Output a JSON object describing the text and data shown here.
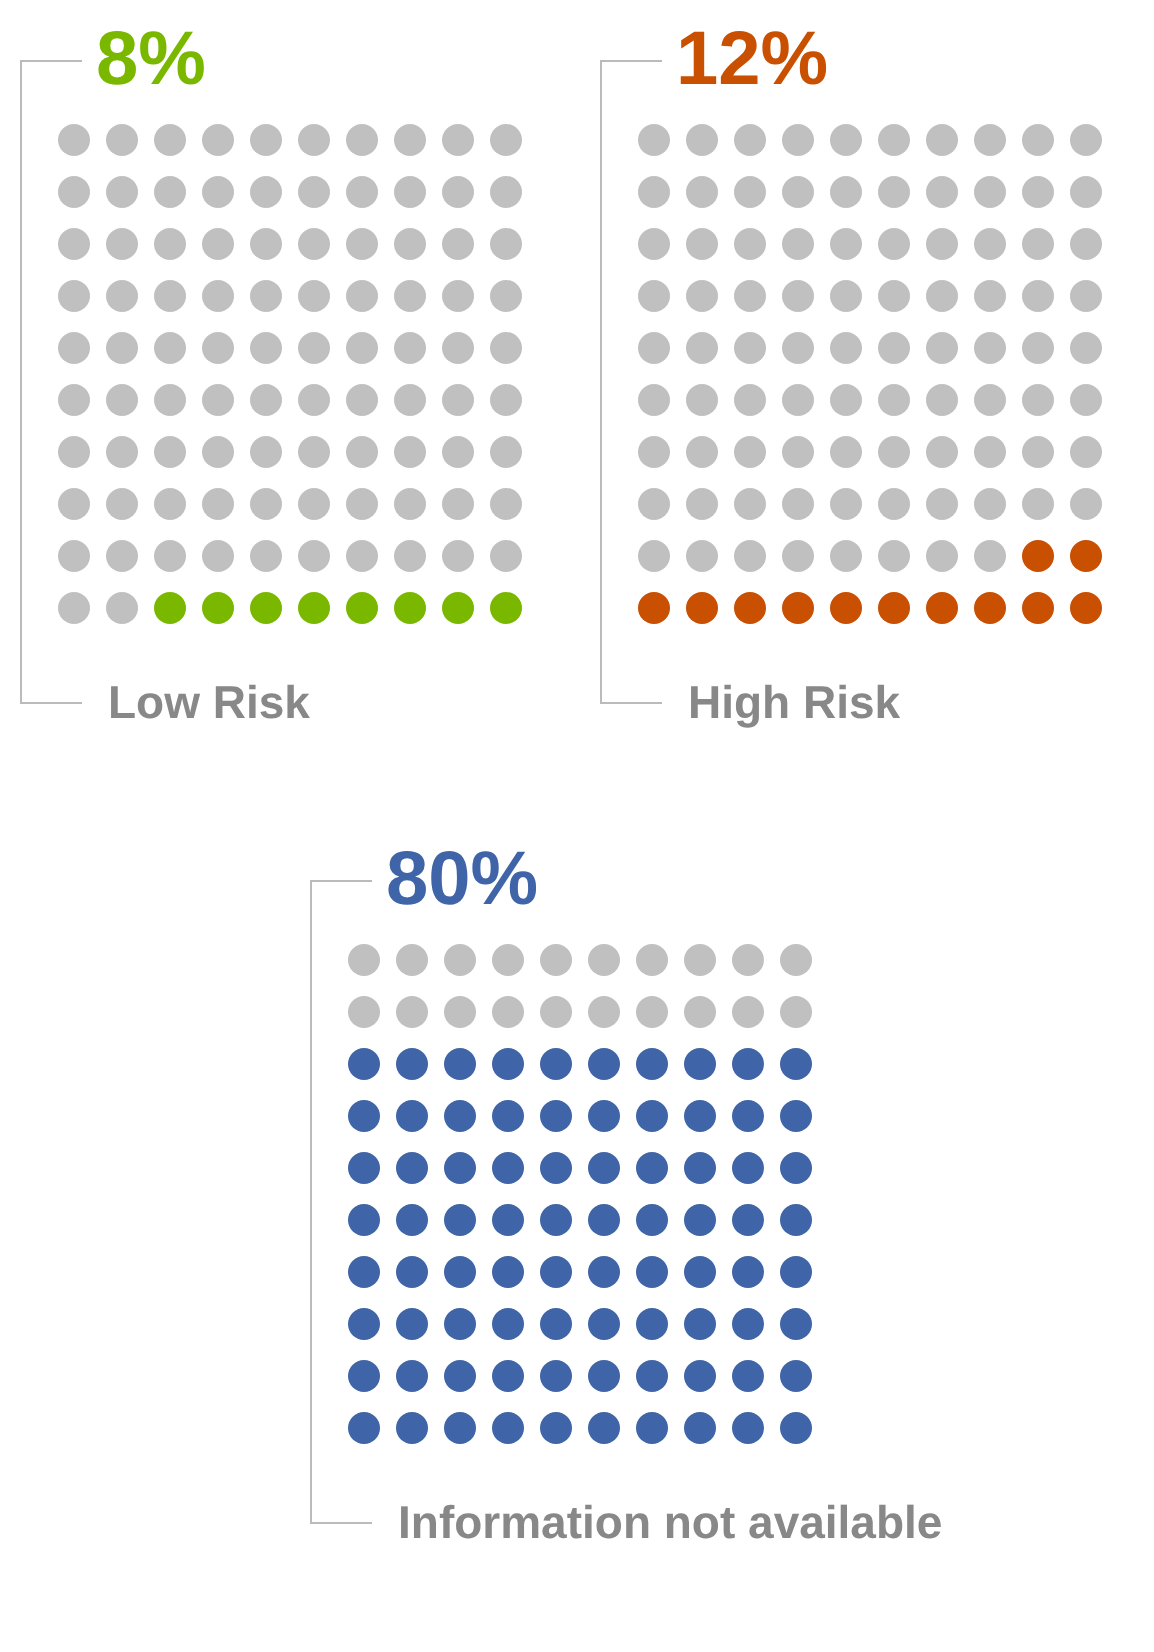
{
  "chart_data": [
    {
      "type": "other",
      "xlabel": "Low Risk",
      "values": [
        8
      ],
      "value_labels": [
        "8%"
      ],
      "color": "#7ab800"
    },
    {
      "type": "other",
      "xlabel": "High Risk",
      "values": [
        12
      ],
      "value_labels": [
        "12%"
      ],
      "color": "#c85000"
    },
    {
      "type": "other",
      "xlabel": "Information not available",
      "values": [
        80
      ],
      "value_labels": [
        "80%"
      ],
      "color": "#3f65a8"
    }
  ]
}
